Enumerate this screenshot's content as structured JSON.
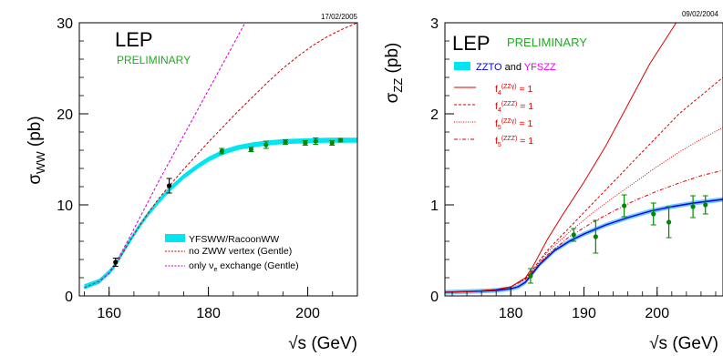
{
  "chart_data": [
    {
      "type": "line",
      "date": "17/02/2005",
      "title": "LEP",
      "subtitle": "PRELIMINARY",
      "xlabel": "√s (GeV)",
      "ylabel_main": "σ",
      "ylabel_sub": "WW",
      "ylabel_unit": "(pb)",
      "xlim": [
        154,
        210
      ],
      "ylim": [
        0,
        30
      ],
      "xticks": [
        "160",
        "180",
        "200"
      ],
      "yticks": [
        "0",
        "10",
        "20",
        "30"
      ],
      "legend": [
        {
          "label": "YFSWW/RacoonWW",
          "style": "band",
          "color": "#00e5f0"
        },
        {
          "label": "no ZWW vertex (Gentle)",
          "style": "dashed",
          "color": "#cc0000"
        },
        {
          "label_main": "only ν",
          "label_sub": "e",
          "label_rest": " exchange (Gentle)",
          "style": "dashed",
          "color": "#cc00cc"
        }
      ],
      "series": [
        {
          "style": "band",
          "color": "#00e5f0",
          "x": [
            155,
            158,
            160,
            161,
            162,
            164,
            166,
            168,
            170,
            172,
            175,
            178,
            180,
            183,
            186,
            189,
            192,
            195,
            198,
            201,
            204,
            207,
            210
          ],
          "y": [
            1.0,
            1.6,
            2.6,
            3.2,
            4.1,
            5.9,
            7.6,
            9.1,
            10.4,
            11.6,
            13.1,
            14.3,
            15.0,
            15.8,
            16.3,
            16.6,
            16.8,
            16.95,
            17.0,
            17.05,
            17.1,
            17.1,
            17.1
          ]
        },
        {
          "style": "dashed",
          "color": "#cc0000",
          "x": [
            155,
            158,
            160,
            162,
            164,
            166,
            168,
            170,
            172,
            175,
            178,
            180,
            183,
            186,
            189,
            192,
            195,
            198,
            201,
            204,
            207,
            210
          ],
          "y": [
            0.9,
            1.6,
            2.5,
            4.0,
            5.9,
            7.6,
            9.2,
            10.7,
            12.0,
            13.9,
            15.7,
            16.9,
            18.6,
            20.3,
            21.9,
            23.5,
            25.0,
            26.3,
            27.5,
            28.5,
            29.3,
            30.0
          ]
        },
        {
          "style": "dashed",
          "color": "#cc00cc",
          "x": [
            155,
            158,
            160,
            162,
            164,
            166,
            168,
            170,
            172,
            174,
            176,
            178,
            180,
            182,
            184,
            186,
            188
          ],
          "y": [
            0.9,
            1.6,
            2.5,
            4.3,
            6.3,
            8.4,
            10.5,
            12.6,
            14.6,
            16.6,
            18.6,
            20.6,
            22.6,
            24.6,
            26.6,
            28.6,
            30.6
          ]
        }
      ],
      "points": [
        {
          "x": 161.3,
          "y": 3.7,
          "err": 0.45,
          "color": "#000000"
        },
        {
          "x": 172.1,
          "y": 12.1,
          "err": 0.8,
          "color": "#000000"
        },
        {
          "x": 182.7,
          "y": 15.9,
          "err": 0.3,
          "color": "#008800"
        },
        {
          "x": 188.6,
          "y": 16.1,
          "err": 0.25,
          "color": "#008800"
        },
        {
          "x": 191.6,
          "y": 16.6,
          "err": 0.4,
          "color": "#008800"
        },
        {
          "x": 195.5,
          "y": 16.9,
          "err": 0.25,
          "color": "#008800"
        },
        {
          "x": 199.5,
          "y": 16.8,
          "err": 0.25,
          "color": "#008800"
        },
        {
          "x": 201.6,
          "y": 17.0,
          "err": 0.35,
          "color": "#008800"
        },
        {
          "x": 204.9,
          "y": 16.8,
          "err": 0.25,
          "color": "#008800"
        },
        {
          "x": 206.6,
          "y": 17.1,
          "err": 0.2,
          "color": "#008800"
        }
      ]
    },
    {
      "type": "line",
      "date": "09/02/2004",
      "title": "LEP",
      "subtitle": "PRELIMINARY",
      "xlabel": "√s (GeV)",
      "ylabel_main": "σ",
      "ylabel_sub": "ZZ",
      "ylabel_unit": "(pb)",
      "xlim": [
        171,
        209
      ],
      "ylim": [
        0,
        3
      ],
      "xticks": [
        "180",
        "190",
        "200"
      ],
      "yticks": [
        "0",
        "1",
        "2",
        "3"
      ],
      "legend_header": {
        "a": "ZZTO",
        "b": "and",
        "c": "YFSZZ"
      },
      "legend": [
        {
          "label_main": "f",
          "label_sub": "4",
          "label_sup": "(ZZγ)",
          "label_rest": " = 1",
          "style": "solid",
          "color": "#dd0000"
        },
        {
          "label_main": "f",
          "label_sub": "4",
          "label_sup": "(ZZZ)",
          "label_rest": " = 1",
          "style": "dashed",
          "color": "#dd0000"
        },
        {
          "label_main": "f",
          "label_sub": "5",
          "label_sup": "(ZZγ)",
          "label_rest": " = 1",
          "style": "dotted",
          "color": "#dd0000"
        },
        {
          "label_main": "f",
          "label_sub": "5",
          "label_sup": "(ZZZ)",
          "label_rest": " = 1",
          "style": "dashdot",
          "color": "#dd0000"
        }
      ],
      "series": [
        {
          "style": "band",
          "color": "#0000ee",
          "x": [
            171,
            175,
            178,
            180,
            181,
            182,
            183,
            184,
            186,
            188,
            190,
            193,
            196,
            199,
            202,
            205,
            209
          ],
          "y": [
            0.04,
            0.05,
            0.06,
            0.08,
            0.1,
            0.15,
            0.25,
            0.35,
            0.5,
            0.6,
            0.68,
            0.78,
            0.86,
            0.93,
            0.98,
            1.02,
            1.06
          ]
        },
        {
          "style": "solid",
          "color": "#dd0000",
          "x": [
            171,
            175,
            178,
            180,
            182,
            183,
            185,
            187,
            190,
            193,
            196,
            199,
            201,
            203,
            204
          ],
          "y": [
            0.04,
            0.05,
            0.07,
            0.1,
            0.2,
            0.32,
            0.62,
            0.88,
            1.25,
            1.65,
            2.1,
            2.55,
            2.8,
            3.05,
            3.2
          ]
        },
        {
          "style": "dashed",
          "color": "#dd0000",
          "x": [
            171,
            175,
            178,
            180,
            182,
            183,
            185,
            188,
            191,
            194,
            197,
            200,
            203,
            206,
            209
          ],
          "y": [
            0.04,
            0.05,
            0.07,
            0.1,
            0.19,
            0.29,
            0.5,
            0.75,
            1.0,
            1.25,
            1.5,
            1.75,
            2.0,
            2.2,
            2.4
          ]
        },
        {
          "style": "dotted",
          "color": "#dd0000",
          "x": [
            171,
            175,
            178,
            180,
            182,
            183,
            185,
            188,
            191,
            194,
            197,
            200,
            203,
            206,
            209
          ],
          "y": [
            0.04,
            0.05,
            0.07,
            0.1,
            0.19,
            0.28,
            0.48,
            0.7,
            0.9,
            1.08,
            1.25,
            1.42,
            1.58,
            1.72,
            1.85
          ]
        },
        {
          "style": "dashdot",
          "color": "#dd0000",
          "x": [
            171,
            175,
            178,
            180,
            182,
            183,
            185,
            188,
            191,
            194,
            197,
            200,
            203,
            206,
            209
          ],
          "y": [
            0.04,
            0.05,
            0.07,
            0.1,
            0.18,
            0.27,
            0.45,
            0.65,
            0.8,
            0.93,
            1.05,
            1.15,
            1.24,
            1.32,
            1.38
          ]
        }
      ],
      "points": [
        {
          "x": 182.7,
          "y": 0.22,
          "err": 0.08,
          "color": "#008800"
        },
        {
          "x": 188.6,
          "y": 0.67,
          "err": 0.07,
          "color": "#008800"
        },
        {
          "x": 191.6,
          "y": 0.65,
          "err": 0.18,
          "color": "#008800"
        },
        {
          "x": 195.5,
          "y": 0.99,
          "err": 0.12,
          "color": "#008800"
        },
        {
          "x": 199.5,
          "y": 0.9,
          "err": 0.12,
          "color": "#008800"
        },
        {
          "x": 201.6,
          "y": 0.81,
          "err": 0.17,
          "color": "#008800"
        },
        {
          "x": 204.9,
          "y": 0.98,
          "err": 0.12,
          "color": "#008800"
        },
        {
          "x": 206.6,
          "y": 1.0,
          "err": 0.1,
          "color": "#008800"
        }
      ]
    }
  ]
}
